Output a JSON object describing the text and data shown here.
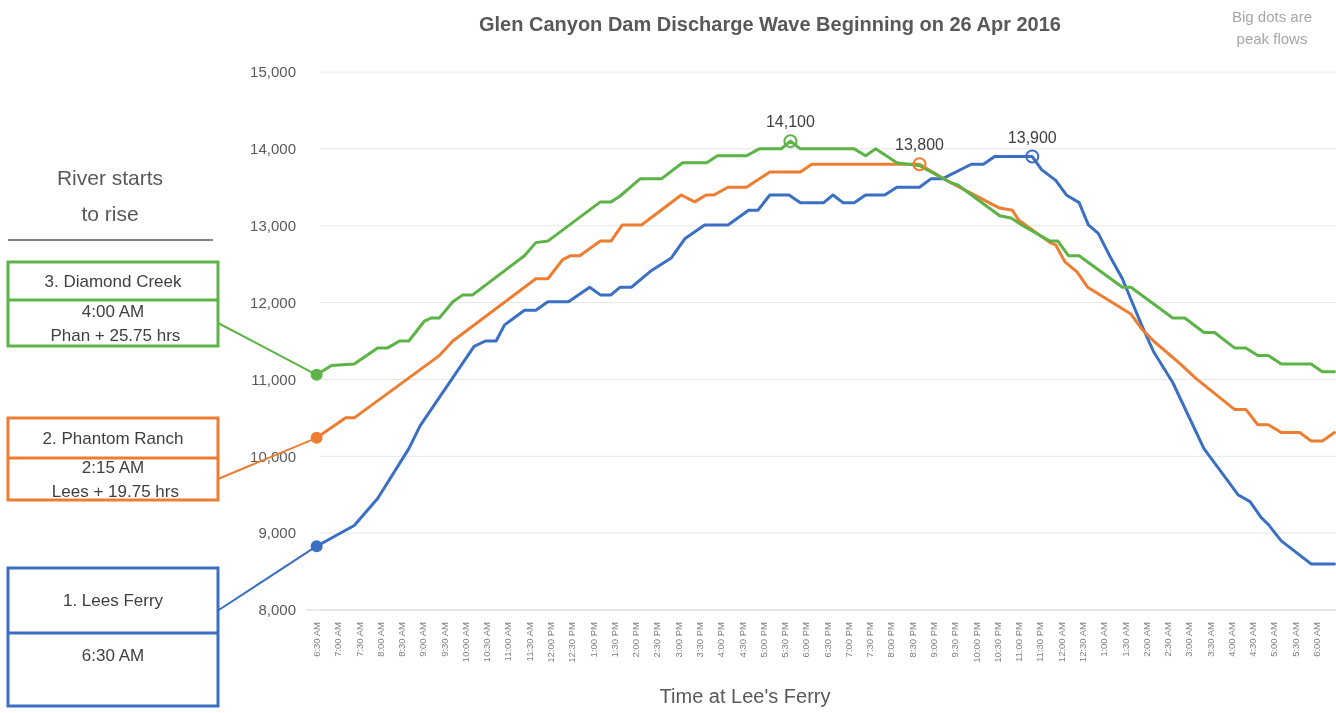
{
  "chart_data": {
    "type": "line",
    "title": "Glen Canyon Dam Discharge Wave Beginning on 26 Apr 2016",
    "xlabel": "Time at Lee's Ferry",
    "xlim": [
      "2016-04-26T06:15",
      "2016-04-27T06:30"
    ],
    "ylim": [
      8000,
      15000
    ],
    "yticks": [
      {
        "value": 8000,
        "label": "8,000"
      },
      {
        "value": 9000,
        "label": "9,000"
      },
      {
        "value": 10000,
        "label": "10,000"
      },
      {
        "value": 11000,
        "label": "11,000"
      },
      {
        "value": 12000,
        "label": "12,000"
      },
      {
        "value": 13000,
        "label": "13,000"
      },
      {
        "value": 14000,
        "label": "14,000"
      },
      {
        "value": 15000,
        "label": "15,000"
      }
    ],
    "xticks": [
      {
        "value": "2016-04-26T06:30",
        "label": "6:30 AM"
      },
      {
        "value": "2016-04-26T07:00",
        "label": "7:00 AM"
      },
      {
        "value": "2016-04-26T07:30",
        "label": "7:30 AM"
      },
      {
        "value": "2016-04-26T08:00",
        "label": "8:00 AM"
      },
      {
        "value": "2016-04-26T08:30",
        "label": "8:30 AM"
      },
      {
        "value": "2016-04-26T09:00",
        "label": "9:00 AM"
      },
      {
        "value": "2016-04-26T09:30",
        "label": "9:30 AM"
      },
      {
        "value": "2016-04-26T10:00",
        "label": "10:00 AM"
      },
      {
        "value": "2016-04-26T10:30",
        "label": "10:30 AM"
      },
      {
        "value": "2016-04-26T11:00",
        "label": "11:00 AM"
      },
      {
        "value": "2016-04-26T11:30",
        "label": "11:30 AM"
      },
      {
        "value": "2016-04-26T12:00",
        "label": "12:00 PM"
      },
      {
        "value": "2016-04-26T12:30",
        "label": "12:30 PM"
      },
      {
        "value": "2016-04-26T13:00",
        "label": "1:00 PM"
      },
      {
        "value": "2016-04-26T13:30",
        "label": "1:30 PM"
      },
      {
        "value": "2016-04-26T14:00",
        "label": "2:00 PM"
      },
      {
        "value": "2016-04-26T14:30",
        "label": "2:30 PM"
      },
      {
        "value": "2016-04-26T15:00",
        "label": "3:00 PM"
      },
      {
        "value": "2016-04-26T15:30",
        "label": "3:30 PM"
      },
      {
        "value": "2016-04-26T16:00",
        "label": "4:00 PM"
      },
      {
        "value": "2016-04-26T16:30",
        "label": "4:30 PM"
      },
      {
        "value": "2016-04-26T17:00",
        "label": "5:00 PM"
      },
      {
        "value": "2016-04-26T17:30",
        "label": "5:30 PM"
      },
      {
        "value": "2016-04-26T18:00",
        "label": "6:00 PM"
      },
      {
        "value": "2016-04-26T18:30",
        "label": "6:30 PM"
      },
      {
        "value": "2016-04-26T19:00",
        "label": "7:00 PM"
      },
      {
        "value": "2016-04-26T19:30",
        "label": "7:30 PM"
      },
      {
        "value": "2016-04-26T20:00",
        "label": "8:00 PM"
      },
      {
        "value": "2016-04-26T20:30",
        "label": "8:30 PM"
      },
      {
        "value": "2016-04-26T21:00",
        "label": "9:00 PM"
      },
      {
        "value": "2016-04-26T21:30",
        "label": "9:30 PM"
      },
      {
        "value": "2016-04-26T22:00",
        "label": "10:00 PM"
      },
      {
        "value": "2016-04-26T22:30",
        "label": "10:30 PM"
      },
      {
        "value": "2016-04-26T23:00",
        "label": "11:00 PM"
      },
      {
        "value": "2016-04-26T23:30",
        "label": "11:30 PM"
      },
      {
        "value": "2016-04-27T00:00",
        "label": "12:00 AM"
      },
      {
        "value": "2016-04-27T00:30",
        "label": "12:30 AM"
      },
      {
        "value": "2016-04-27T01:00",
        "label": "1:00 AM"
      },
      {
        "value": "2016-04-27T01:30",
        "label": "1:30 AM"
      },
      {
        "value": "2016-04-27T02:00",
        "label": "2:00 AM"
      },
      {
        "value": "2016-04-27T02:30",
        "label": "2:30 AM"
      },
      {
        "value": "2016-04-27T03:00",
        "label": "3:00 AM"
      },
      {
        "value": "2016-04-27T03:30",
        "label": "3:30 AM"
      },
      {
        "value": "2016-04-27T04:00",
        "label": "4:00 AM"
      },
      {
        "value": "2016-04-27T04:30",
        "label": "4:30 AM"
      },
      {
        "value": "2016-04-27T05:00",
        "label": "5:00 AM"
      },
      {
        "value": "2016-04-27T05:30",
        "label": "5:30 AM"
      },
      {
        "value": "2016-04-27T06:00",
        "label": "6:00 AM"
      }
    ],
    "grid": "y",
    "series": [
      {
        "color": "#3a6fc4",
        "x": [
          "2016-04-26T06:30",
          "2016-04-26T07:23",
          "2016-04-26T07:56",
          "2016-04-26T08:40",
          "2016-04-26T08:56",
          "2016-04-26T10:12",
          "2016-04-26T10:28",
          "2016-04-26T10:43",
          "2016-04-26T10:55",
          "2016-04-26T11:23",
          "2016-04-26T11:39",
          "2016-04-26T11:56",
          "2016-04-26T12:25",
          "2016-04-26T12:55",
          "2016-04-26T13:10",
          "2016-04-26T13:25",
          "2016-04-26T13:38",
          "2016-04-26T13:54",
          "2016-04-26T14:21",
          "2016-04-26T14:50",
          "2016-04-26T15:09",
          "2016-04-26T15:37",
          "2016-04-26T16:10",
          "2016-04-26T16:39",
          "2016-04-26T16:52",
          "2016-04-26T17:09",
          "2016-04-26T17:36",
          "2016-04-26T17:52",
          "2016-04-26T18:25",
          "2016-04-26T18:38",
          "2016-04-26T18:52",
          "2016-04-26T19:08",
          "2016-04-26T19:24",
          "2016-04-26T19:51",
          "2016-04-26T20:08",
          "2016-04-26T20:40",
          "2016-04-26T20:56",
          "2016-04-26T21:12",
          "2016-04-26T21:53",
          "2016-04-26T22:10",
          "2016-04-26T22:26",
          "2016-04-26T23:19",
          "2016-04-26T23:32",
          "2016-04-26T23:52",
          "2016-04-27T00:07",
          "2016-04-27T00:25",
          "2016-04-27T00:38",
          "2016-04-27T00:52",
          "2016-04-27T01:08",
          "2016-04-27T01:26",
          "2016-04-27T01:53",
          "2016-04-27T02:10",
          "2016-04-27T02:37",
          "2016-04-27T03:21",
          "2016-04-27T04:09",
          "2016-04-27T04:26",
          "2016-04-27T04:42",
          "2016-04-27T04:52",
          "2016-04-27T05:10",
          "2016-04-27T05:52",
          "2016-04-27T06:25"
        ],
        "values": [
          8830,
          9100,
          9450,
          10100,
          10400,
          11430,
          11500,
          11500,
          11710,
          11900,
          11900,
          12010,
          12010,
          12200,
          12100,
          12100,
          12200,
          12200,
          12410,
          12580,
          12830,
          13010,
          13010,
          13200,
          13200,
          13400,
          13400,
          13300,
          13300,
          13400,
          13300,
          13300,
          13400,
          13400,
          13500,
          13500,
          13610,
          13610,
          13800,
          13800,
          13900,
          13900,
          13730,
          13590,
          13400,
          13300,
          13010,
          12900,
          12610,
          12310,
          11710,
          11360,
          10960,
          10100,
          9500,
          9410,
          9200,
          9110,
          8900,
          8600,
          8600
        ]
      },
      {
        "color": "#ed7d31",
        "x": [
          "2016-04-26T06:30",
          "2016-04-26T07:11",
          "2016-04-26T07:23",
          "2016-04-26T09:23",
          "2016-04-26T09:42",
          "2016-04-26T11:39",
          "2016-04-26T11:56",
          "2016-04-26T12:17",
          "2016-04-26T12:28",
          "2016-04-26T12:41",
          "2016-04-26T13:10",
          "2016-04-26T13:25",
          "2016-04-26T13:41",
          "2016-04-26T14:08",
          "2016-04-26T15:04",
          "2016-04-26T15:23",
          "2016-04-26T15:39",
          "2016-04-26T15:50",
          "2016-04-26T16:10",
          "2016-04-26T16:36",
          "2016-04-26T17:09",
          "2016-04-26T17:52",
          "2016-04-26T18:08",
          "2016-04-26T20:40",
          "2016-04-26T21:24",
          "2016-04-26T22:18",
          "2016-04-26T22:33",
          "2016-04-26T22:51",
          "2016-04-26T23:00",
          "2016-04-26T23:44",
          "2016-04-26T23:52",
          "2016-04-27T00:05",
          "2016-04-27T00:22",
          "2016-04-27T00:37",
          "2016-04-27T01:38",
          "2016-04-27T01:53",
          "2016-04-27T02:10",
          "2016-04-27T02:48",
          "2016-04-27T03:10",
          "2016-04-27T04:04",
          "2016-04-27T04:20",
          "2016-04-27T04:37",
          "2016-04-27T04:52",
          "2016-04-27T05:10",
          "2016-04-27T05:36",
          "2016-04-27T05:52",
          "2016-04-27T06:08",
          "2016-04-27T06:25"
        ],
        "values": [
          10240,
          10500,
          10500,
          11310,
          11500,
          12310,
          12310,
          12560,
          12610,
          12610,
          12800,
          12800,
          13010,
          13010,
          13400,
          13310,
          13400,
          13400,
          13500,
          13500,
          13700,
          13700,
          13800,
          13800,
          13560,
          13300,
          13230,
          13200,
          13070,
          12780,
          12750,
          12530,
          12400,
          12200,
          11850,
          11660,
          11500,
          11200,
          11010,
          10610,
          10610,
          10410,
          10410,
          10310,
          10310,
          10200,
          10200,
          10310
        ]
      },
      {
        "color": "#5cb346",
        "x": [
          "2016-04-26T06:30",
          "2016-04-26T06:51",
          "2016-04-26T07:23",
          "2016-04-26T07:56",
          "2016-04-26T08:10",
          "2016-04-26T08:27",
          "2016-04-26T08:40",
          "2016-04-26T09:02",
          "2016-04-26T09:12",
          "2016-04-26T09:23",
          "2016-04-26T09:42",
          "2016-04-26T09:56",
          "2016-04-26T10:10",
          "2016-04-26T11:23",
          "2016-04-26T11:39",
          "2016-04-26T11:56",
          "2016-04-26T13:10",
          "2016-04-26T13:25",
          "2016-04-26T13:37",
          "2016-04-26T14:06",
          "2016-04-26T14:36",
          "2016-04-26T15:06",
          "2016-04-26T15:40",
          "2016-04-26T15:55",
          "2016-04-26T16:36",
          "2016-04-26T16:54",
          "2016-04-26T17:25",
          "2016-04-26T17:38",
          "2016-04-26T17:52",
          "2016-04-26T19:08",
          "2016-04-26T19:24",
          "2016-04-26T19:38",
          "2016-04-26T20:08",
          "2016-04-26T20:40",
          "2016-04-26T21:24",
          "2016-04-26T21:34",
          "2016-04-26T22:33",
          "2016-04-26T22:49",
          "2016-04-26T23:04",
          "2016-04-26T23:44",
          "2016-04-26T23:55",
          "2016-04-27T00:10",
          "2016-04-27T00:25",
          "2016-04-27T01:26",
          "2016-04-27T01:38",
          "2016-04-27T02:37",
          "2016-04-27T02:54",
          "2016-04-27T03:21",
          "2016-04-27T03:36",
          "2016-04-27T04:04",
          "2016-04-27T04:20",
          "2016-04-27T04:37",
          "2016-04-27T04:52",
          "2016-04-27T05:10",
          "2016-04-27T05:52",
          "2016-04-27T06:08",
          "2016-04-27T06:25"
        ],
        "values": [
          11060,
          11180,
          11200,
          11410,
          11410,
          11500,
          11500,
          11760,
          11800,
          11800,
          12010,
          12100,
          12100,
          12610,
          12780,
          12800,
          13310,
          13310,
          13380,
          13610,
          13610,
          13820,
          13820,
          13910,
          13910,
          14000,
          14000,
          14100,
          14000,
          14000,
          13910,
          14000,
          13820,
          13780,
          13560,
          13530,
          13130,
          13100,
          13010,
          12800,
          12800,
          12610,
          12610,
          12200,
          12200,
          11800,
          11800,
          11610,
          11610,
          11410,
          11410,
          11310,
          11310,
          11200,
          11200,
          11100,
          11100
        ]
      }
    ],
    "annotations": [
      "River starts\nto rise",
      "Big dots are\npeak flows",
      {
        "text": "13,900",
        "x": "2016-04-26T23:19",
        "y": 13900
      },
      {
        "text": "13,800",
        "x": "2016-04-26T20:40",
        "y": 13800
      },
      {
        "text": "14,100",
        "x": "2016-04-26T17:38",
        "y": 14100
      },
      "1. Lees Ferry",
      "6:30 AM",
      "2. Phantom Ranch",
      "2:15 AM\nLees + 19.75 hrs",
      "3. Diamond Creek",
      "4:00 AM\nPhan + 25.75 hrs"
    ]
  }
}
